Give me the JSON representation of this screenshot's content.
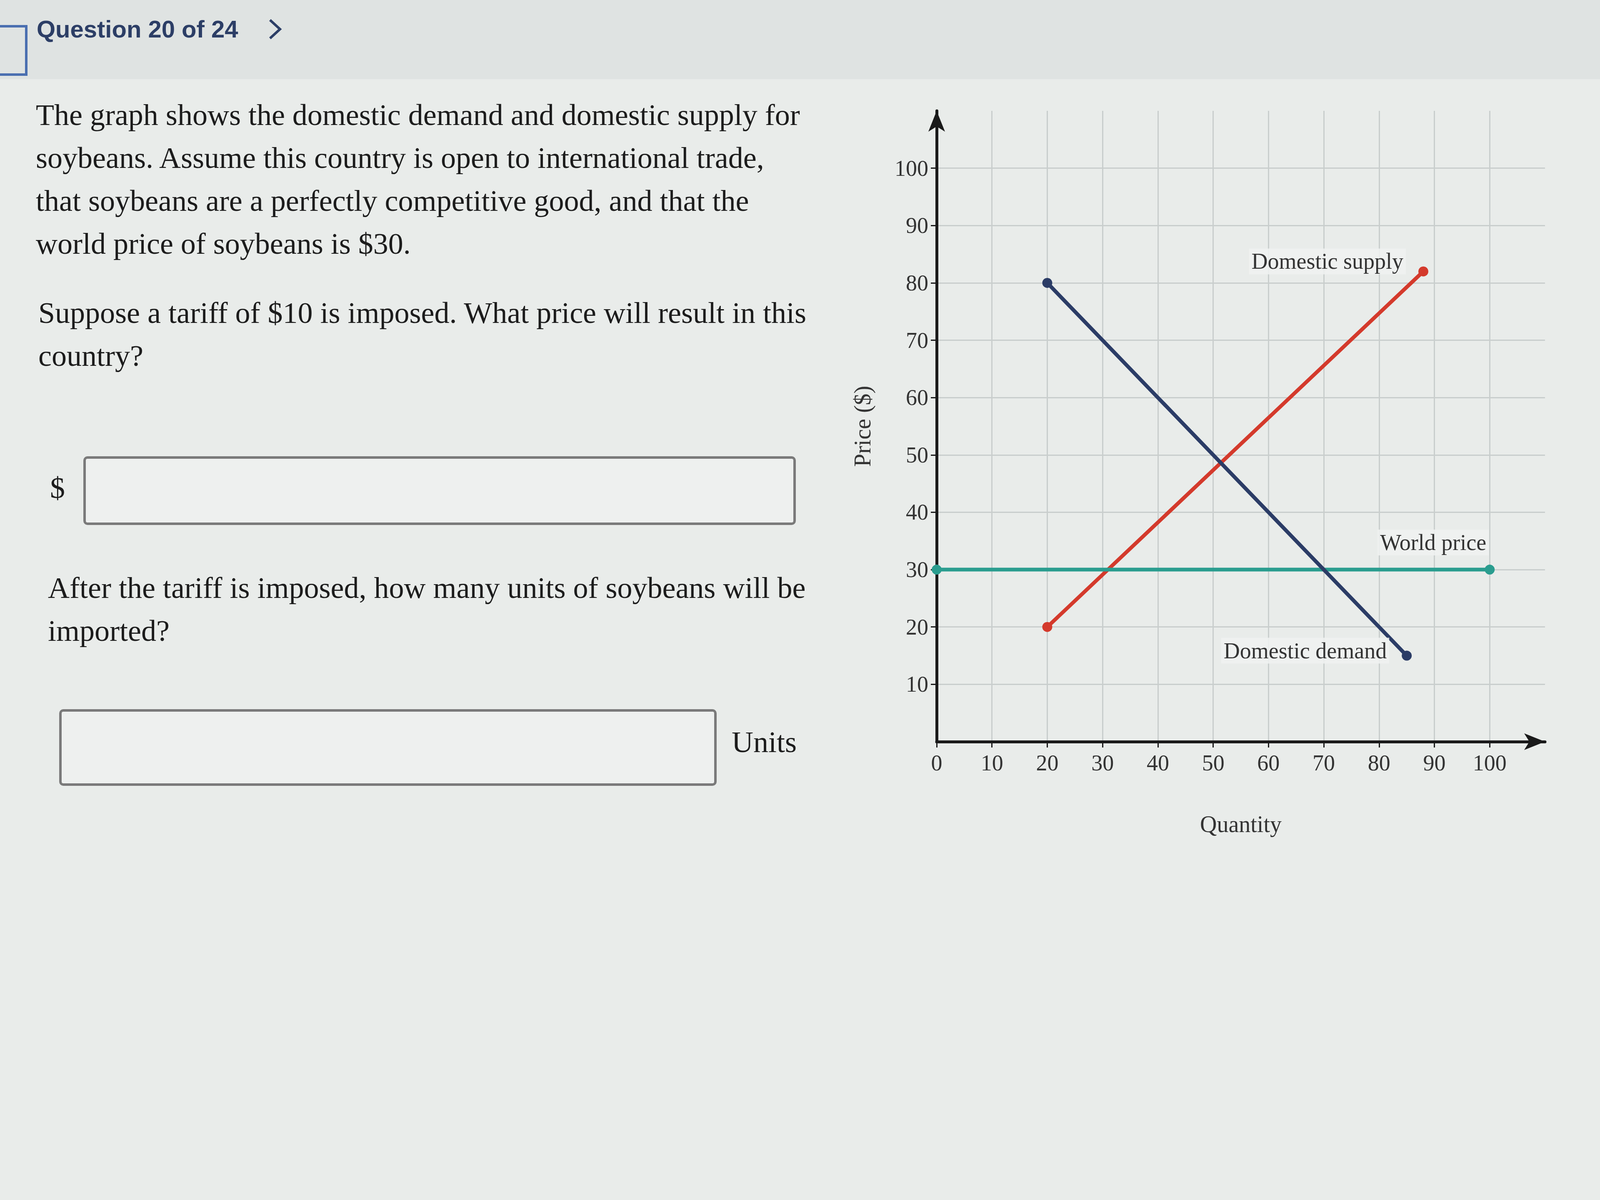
{
  "header": {
    "title": "Question 20 of 24"
  },
  "question": {
    "intro": "The graph shows the domestic demand and domestic supply for soybeans. Assume this country is open to international trade, that soybeans are a perfectly competitive good, and that the world price of soybeans is $30.",
    "parts": [
      {
        "prompt": "Suppose a tariff of $10 is imposed. What price will result in this country?",
        "prefix": "$"
      },
      {
        "prompt": "After the tariff is imposed, how many units of soybeans will be imported?",
        "suffix": "Units"
      }
    ]
  },
  "chart_data": {
    "type": "line",
    "xlabel": "Quantity",
    "ylabel": "Price ($)",
    "xlim": [
      0,
      110
    ],
    "ylim": [
      0,
      110
    ],
    "xticks": [
      0,
      10,
      20,
      30,
      40,
      50,
      60,
      70,
      80,
      90,
      100
    ],
    "yticks": [
      10,
      20,
      30,
      40,
      50,
      60,
      70,
      80,
      90,
      100
    ],
    "grid": true,
    "series": [
      {
        "name": "Domestic supply",
        "color": "#d43a2c",
        "marker": "circle",
        "x": [
          20,
          88
        ],
        "values": [
          20,
          82
        ]
      },
      {
        "name": "World price",
        "color": "#2a9d8f",
        "marker": "circle",
        "x": [
          0,
          100
        ],
        "values": [
          30,
          30
        ]
      },
      {
        "name": "Domestic demand",
        "color": "#2b3c66",
        "marker": "circle",
        "x": [
          20,
          85
        ],
        "values": [
          80,
          15
        ]
      }
    ]
  }
}
